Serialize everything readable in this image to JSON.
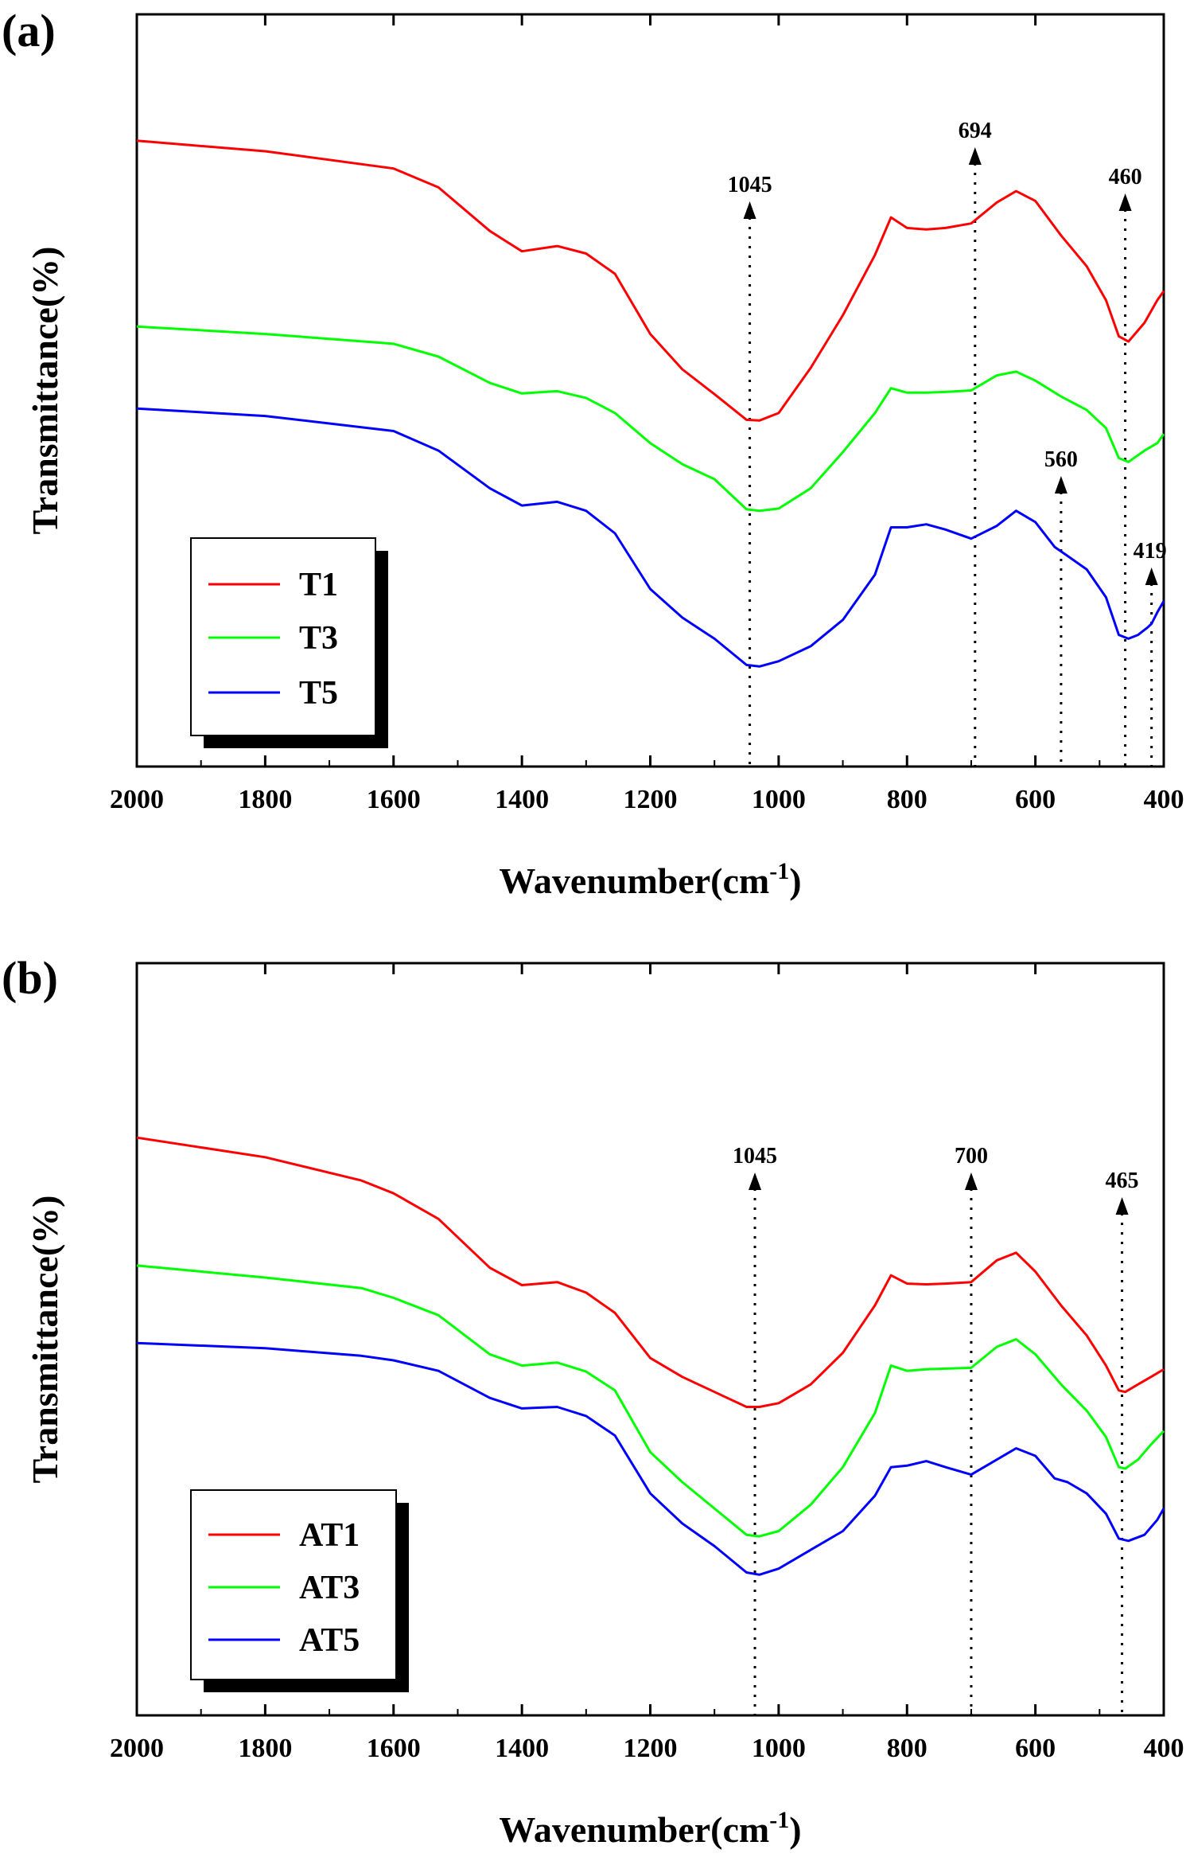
{
  "chart_data": [
    {
      "panel": "(a)",
      "type": "line",
      "xlabel": "Wavenumber(cm",
      "xlabel_sup": "-1",
      "xlabel_close": ")",
      "ylabel": "Transmittance(%)",
      "xlim": [
        2000,
        400
      ],
      "x_reversed": true,
      "xticks": [
        2000,
        1800,
        1600,
        1400,
        1200,
        1000,
        800,
        600,
        400
      ],
      "y_ticks_shown": false,
      "series": [
        {
          "name": "T1",
          "color": "#ff0000",
          "points": [
            [
              2000,
              0.832
            ],
            [
              1800,
              0.818
            ],
            [
              1600,
              0.795
            ],
            [
              1530,
              0.77
            ],
            [
              1450,
              0.712
            ],
            [
              1400,
              0.685
            ],
            [
              1345,
              0.692
            ],
            [
              1300,
              0.682
            ],
            [
              1255,
              0.655
            ],
            [
              1200,
              0.575
            ],
            [
              1150,
              0.528
            ],
            [
              1100,
              0.495
            ],
            [
              1050,
              0.461
            ],
            [
              1030,
              0.46
            ],
            [
              1000,
              0.47
            ],
            [
              950,
              0.53
            ],
            [
              900,
              0.6
            ],
            [
              850,
              0.68
            ],
            [
              825,
              0.73
            ],
            [
              800,
              0.716
            ],
            [
              770,
              0.714
            ],
            [
              740,
              0.716
            ],
            [
              700,
              0.722
            ],
            [
              660,
              0.75
            ],
            [
              630,
              0.765
            ],
            [
              600,
              0.752
            ],
            [
              560,
              0.706
            ],
            [
              520,
              0.665
            ],
            [
              490,
              0.62
            ],
            [
              470,
              0.572
            ],
            [
              455,
              0.565
            ],
            [
              430,
              0.59
            ],
            [
              410,
              0.62
            ],
            [
              400,
              0.632
            ]
          ]
        },
        {
          "name": "T3",
          "color": "#00ff00",
          "points": [
            [
              2000,
              0.585
            ],
            [
              1800,
              0.575
            ],
            [
              1600,
              0.562
            ],
            [
              1530,
              0.545
            ],
            [
              1450,
              0.51
            ],
            [
              1400,
              0.496
            ],
            [
              1345,
              0.499
            ],
            [
              1300,
              0.49
            ],
            [
              1255,
              0.47
            ],
            [
              1200,
              0.43
            ],
            [
              1150,
              0.402
            ],
            [
              1100,
              0.382
            ],
            [
              1050,
              0.342
            ],
            [
              1030,
              0.34
            ],
            [
              1000,
              0.343
            ],
            [
              950,
              0.37
            ],
            [
              900,
              0.418
            ],
            [
              850,
              0.47
            ],
            [
              825,
              0.503
            ],
            [
              800,
              0.497
            ],
            [
              770,
              0.497
            ],
            [
              740,
              0.498
            ],
            [
              700,
              0.5
            ],
            [
              660,
              0.52
            ],
            [
              630,
              0.525
            ],
            [
              600,
              0.513
            ],
            [
              560,
              0.492
            ],
            [
              520,
              0.474
            ],
            [
              490,
              0.45
            ],
            [
              470,
              0.41
            ],
            [
              455,
              0.405
            ],
            [
              430,
              0.42
            ],
            [
              410,
              0.43
            ],
            [
              400,
              0.442
            ]
          ]
        },
        {
          "name": "T5",
          "color": "#0000ff",
          "points": [
            [
              2000,
              0.476
            ],
            [
              1800,
              0.466
            ],
            [
              1600,
              0.446
            ],
            [
              1530,
              0.42
            ],
            [
              1450,
              0.37
            ],
            [
              1400,
              0.347
            ],
            [
              1345,
              0.352
            ],
            [
              1300,
              0.34
            ],
            [
              1255,
              0.31
            ],
            [
              1200,
              0.236
            ],
            [
              1150,
              0.198
            ],
            [
              1100,
              0.17
            ],
            [
              1050,
              0.135
            ],
            [
              1030,
              0.133
            ],
            [
              1000,
              0.14
            ],
            [
              950,
              0.16
            ],
            [
              900,
              0.195
            ],
            [
              850,
              0.255
            ],
            [
              825,
              0.318
            ],
            [
              800,
              0.318
            ],
            [
              770,
              0.322
            ],
            [
              740,
              0.315
            ],
            [
              700,
              0.303
            ],
            [
              660,
              0.32
            ],
            [
              630,
              0.34
            ],
            [
              600,
              0.325
            ],
            [
              570,
              0.292
            ],
            [
              550,
              0.28
            ],
            [
              520,
              0.262
            ],
            [
              490,
              0.225
            ],
            [
              470,
              0.175
            ],
            [
              455,
              0.17
            ],
            [
              440,
              0.175
            ],
            [
              425,
              0.185
            ],
            [
              419,
              0.19
            ],
            [
              410,
              0.205
            ],
            [
              400,
              0.22
            ]
          ]
        }
      ],
      "annotations": [
        {
          "label": "1045",
          "x": 1045
        },
        {
          "label": "694",
          "x": 694
        },
        {
          "label": "460",
          "x": 460
        },
        {
          "label": "560",
          "x": 560
        },
        {
          "label": "419",
          "x": 419
        }
      ],
      "legend": {
        "position": "lower-left",
        "entries": [
          "T1",
          "T3",
          "T5"
        ]
      }
    },
    {
      "panel": "(b)",
      "type": "line",
      "xlabel": "Wavenumber(cm",
      "xlabel_sup": "-1",
      "xlabel_close": ")",
      "ylabel": "Transmittance(%)",
      "xlim": [
        2000,
        400
      ],
      "x_reversed": true,
      "xticks": [
        2000,
        1800,
        1600,
        1400,
        1200,
        1000,
        800,
        600,
        400
      ],
      "y_ticks_shown": false,
      "series": [
        {
          "name": "AT1",
          "color": "#ff0000",
          "points": [
            [
              2000,
              0.768
            ],
            [
              1800,
              0.742
            ],
            [
              1650,
              0.711
            ],
            [
              1600,
              0.694
            ],
            [
              1530,
              0.66
            ],
            [
              1450,
              0.595
            ],
            [
              1400,
              0.572
            ],
            [
              1345,
              0.576
            ],
            [
              1300,
              0.562
            ],
            [
              1255,
              0.535
            ],
            [
              1200,
              0.475
            ],
            [
              1150,
              0.45
            ],
            [
              1100,
              0.43
            ],
            [
              1050,
              0.41
            ],
            [
              1030,
              0.41
            ],
            [
              1000,
              0.415
            ],
            [
              950,
              0.44
            ],
            [
              900,
              0.482
            ],
            [
              850,
              0.545
            ],
            [
              825,
              0.585
            ],
            [
              800,
              0.574
            ],
            [
              770,
              0.573
            ],
            [
              740,
              0.574
            ],
            [
              700,
              0.576
            ],
            [
              660,
              0.605
            ],
            [
              630,
              0.615
            ],
            [
              600,
              0.59
            ],
            [
              560,
              0.545
            ],
            [
              520,
              0.505
            ],
            [
              490,
              0.465
            ],
            [
              470,
              0.432
            ],
            [
              460,
              0.43
            ],
            [
              440,
              0.44
            ],
            [
              420,
              0.45
            ],
            [
              400,
              0.46
            ]
          ]
        },
        {
          "name": "AT3",
          "color": "#00ff00",
          "points": [
            [
              2000,
              0.598
            ],
            [
              1800,
              0.582
            ],
            [
              1650,
              0.568
            ],
            [
              1600,
              0.555
            ],
            [
              1530,
              0.532
            ],
            [
              1450,
              0.48
            ],
            [
              1400,
              0.465
            ],
            [
              1345,
              0.469
            ],
            [
              1300,
              0.457
            ],
            [
              1255,
              0.432
            ],
            [
              1200,
              0.35
            ],
            [
              1150,
              0.31
            ],
            [
              1100,
              0.275
            ],
            [
              1050,
              0.24
            ],
            [
              1030,
              0.238
            ],
            [
              1000,
              0.245
            ],
            [
              950,
              0.28
            ],
            [
              900,
              0.33
            ],
            [
              850,
              0.402
            ],
            [
              825,
              0.465
            ],
            [
              800,
              0.458
            ],
            [
              770,
              0.46
            ],
            [
              740,
              0.461
            ],
            [
              700,
              0.462
            ],
            [
              660,
              0.49
            ],
            [
              630,
              0.5
            ],
            [
              600,
              0.48
            ],
            [
              560,
              0.44
            ],
            [
              520,
              0.405
            ],
            [
              490,
              0.37
            ],
            [
              470,
              0.33
            ],
            [
              460,
              0.328
            ],
            [
              440,
              0.34
            ],
            [
              420,
              0.36
            ],
            [
              400,
              0.378
            ]
          ]
        },
        {
          "name": "AT5",
          "color": "#0000ff",
          "points": [
            [
              2000,
              0.495
            ],
            [
              1800,
              0.488
            ],
            [
              1650,
              0.478
            ],
            [
              1600,
              0.472
            ],
            [
              1530,
              0.458
            ],
            [
              1450,
              0.422
            ],
            [
              1400,
              0.408
            ],
            [
              1345,
              0.41
            ],
            [
              1300,
              0.398
            ],
            [
              1255,
              0.372
            ],
            [
              1200,
              0.295
            ],
            [
              1150,
              0.255
            ],
            [
              1100,
              0.225
            ],
            [
              1050,
              0.19
            ],
            [
              1030,
              0.187
            ],
            [
              1000,
              0.195
            ],
            [
              950,
              0.22
            ],
            [
              900,
              0.245
            ],
            [
              850,
              0.292
            ],
            [
              825,
              0.33
            ],
            [
              800,
              0.332
            ],
            [
              770,
              0.338
            ],
            [
              740,
              0.33
            ],
            [
              700,
              0.32
            ],
            [
              660,
              0.34
            ],
            [
              630,
              0.355
            ],
            [
              600,
              0.345
            ],
            [
              570,
              0.315
            ],
            [
              550,
              0.31
            ],
            [
              520,
              0.295
            ],
            [
              490,
              0.268
            ],
            [
              470,
              0.235
            ],
            [
              455,
              0.232
            ],
            [
              430,
              0.24
            ],
            [
              410,
              0.26
            ],
            [
              400,
              0.275
            ]
          ]
        }
      ],
      "annotations": [
        {
          "label": "1045",
          "x": 1037
        },
        {
          "label": "700",
          "x": 700
        },
        {
          "label": "465",
          "x": 465
        }
      ],
      "legend": {
        "position": "lower-left",
        "entries": [
          "AT1",
          "AT3",
          "AT5"
        ]
      }
    }
  ]
}
